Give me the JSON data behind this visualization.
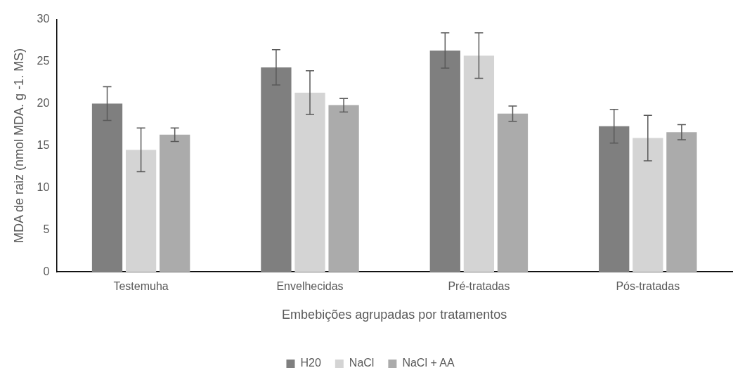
{
  "chart_data": {
    "type": "bar",
    "xlabel": "Embebições agrupadas por tratamentos",
    "ylabel": "MDA de raiz (nmol MDA. g -1. MS)",
    "categories": [
      "Testemuha",
      "Envelhecidas",
      "Pré-tratadas",
      "Pós-tratadas"
    ],
    "series": [
      {
        "name": "H20",
        "color": "#7f7f7f",
        "values": [
          20,
          24.3,
          26.3,
          17.3
        ],
        "errors": [
          2,
          2.1,
          2.1,
          2
        ]
      },
      {
        "name": "NaCl",
        "color": "#d4d4d4",
        "values": [
          14.5,
          21.3,
          25.7,
          15.9
        ],
        "errors": [
          2.6,
          2.6,
          2.7,
          2.7
        ]
      },
      {
        "name": "NaCl + AA",
        "color": "#ababab",
        "values": [
          16.3,
          19.8,
          18.8,
          16.6
        ],
        "errors": [
          0.8,
          0.8,
          0.9,
          0.9
        ]
      }
    ],
    "ylim": [
      0,
      30
    ],
    "yticks": [
      0,
      5,
      10,
      15,
      20,
      25,
      30
    ],
    "grid": false,
    "legend": "bottom"
  }
}
